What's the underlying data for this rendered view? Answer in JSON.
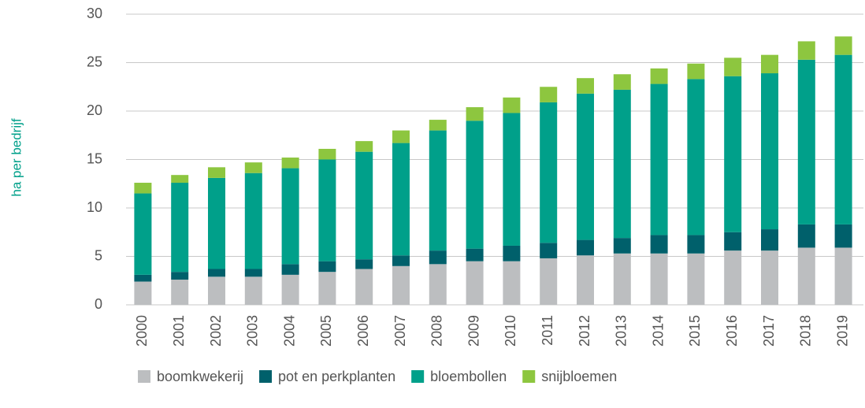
{
  "chart_data": {
    "type": "stacked_bar",
    "y_label": "ha per bedrijf",
    "categories": [
      "2000",
      "2001",
      "2002",
      "2003",
      "2004",
      "2005",
      "2006",
      "2007",
      "2008",
      "2009",
      "2010",
      "2011",
      "2012",
      "2013",
      "2014",
      "2015",
      "2016",
      "2017",
      "2018",
      "2019"
    ],
    "series": [
      {
        "name": "boomkwekerij",
        "color": "#bcbec0",
        "values": [
          2.4,
          2.6,
          2.9,
          2.9,
          3.1,
          3.4,
          3.7,
          4.0,
          4.2,
          4.5,
          4.5,
          4.8,
          5.1,
          5.3,
          5.3,
          5.3,
          5.6,
          5.6,
          5.9,
          5.9
        ]
      },
      {
        "name": "pot en perkplanten",
        "color": "#00606b",
        "values": [
          0.7,
          0.8,
          0.8,
          0.8,
          1.1,
          1.1,
          1.0,
          1.1,
          1.4,
          1.3,
          1.6,
          1.6,
          1.6,
          1.6,
          1.9,
          1.9,
          1.9,
          2.2,
          2.4,
          2.4
        ]
      },
      {
        "name": "bloembollen",
        "color": "#00a08a",
        "values": [
          8.4,
          9.2,
          9.4,
          9.9,
          9.9,
          10.5,
          11.1,
          11.6,
          12.4,
          13.2,
          13.7,
          14.5,
          15.1,
          15.3,
          15.6,
          16.1,
          16.1,
          16.1,
          17.0,
          17.5
        ]
      },
      {
        "name": "snijbloemen",
        "color": "#8dc63f",
        "values": [
          1.1,
          0.8,
          1.1,
          1.1,
          1.1,
          1.1,
          1.1,
          1.3,
          1.1,
          1.4,
          1.6,
          1.6,
          1.6,
          1.6,
          1.6,
          1.6,
          1.9,
          1.9,
          1.9,
          1.9
        ]
      }
    ],
    "ylim": [
      0,
      30
    ],
    "yticks": [
      0,
      5,
      10,
      15,
      20,
      25,
      30
    ],
    "grid": true,
    "legend": "bottom"
  }
}
